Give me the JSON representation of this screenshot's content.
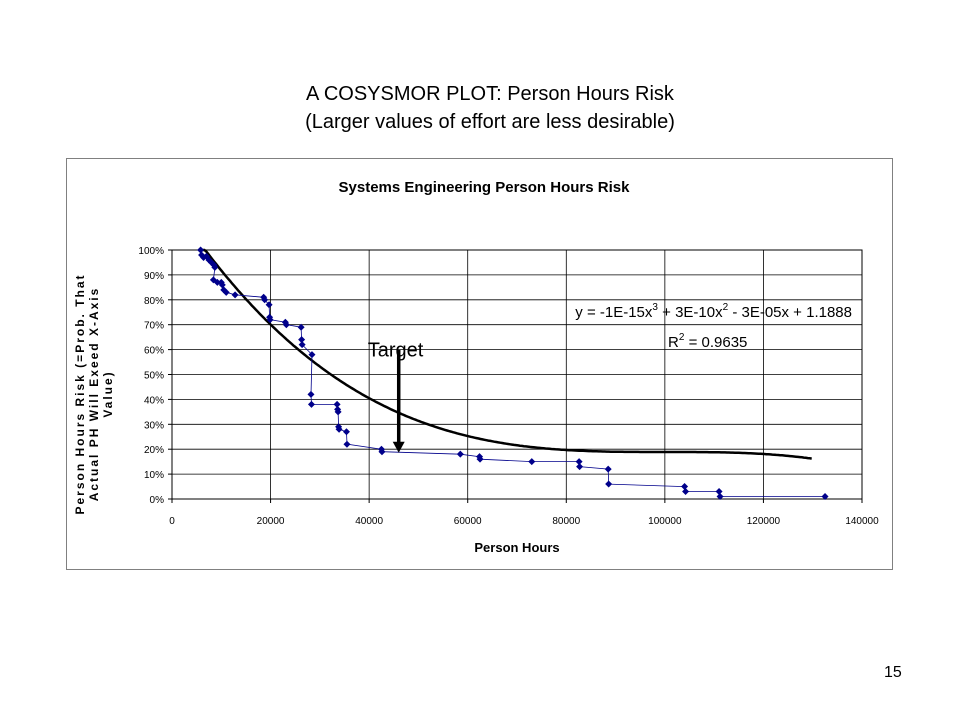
{
  "slide": {
    "title_line1": "A COSYSMOR  PLOT: Person Hours Risk",
    "title_line2": "(Larger values of effort are less desirable)",
    "page_number": "15"
  },
  "chart_data": {
    "type": "scatter",
    "title": "Systems Engineering Person Hours Risk",
    "xlabel": "Person Hours",
    "ylabel_lines": [
      "Person Hours Risk (=Prob. That",
      "Actual PH Will Exeed X-Axis",
      "Value)"
    ],
    "xlim": [
      0,
      140000
    ],
    "ylim": [
      0,
      1
    ],
    "x_ticks": [
      0,
      20000,
      40000,
      60000,
      80000,
      100000,
      120000,
      140000
    ],
    "x_tick_labels": [
      "0",
      "20000",
      "40000",
      "60000",
      "80000",
      "100000",
      "120000",
      "140000"
    ],
    "y_ticks": [
      0,
      0.1,
      0.2,
      0.3,
      0.4,
      0.5,
      0.6,
      0.7,
      0.8,
      0.9,
      1.0
    ],
    "y_tick_labels": [
      "0%",
      "10%",
      "20%",
      "30%",
      "40%",
      "50%",
      "60%",
      "70%",
      "80%",
      "90%",
      "100%"
    ],
    "grid": true,
    "series": [
      {
        "marker_color": "#00008B",
        "points": [
          [
            5800,
            1.0
          ],
          [
            6000,
            0.98
          ],
          [
            6400,
            0.97
          ],
          [
            7000,
            0.975
          ],
          [
            7500,
            0.96
          ],
          [
            8000,
            0.95
          ],
          [
            8500,
            0.94
          ],
          [
            8700,
            0.93
          ],
          [
            8400,
            0.88
          ],
          [
            9200,
            0.87
          ],
          [
            10000,
            0.87
          ],
          [
            10200,
            0.86
          ],
          [
            10500,
            0.84
          ],
          [
            11000,
            0.83
          ],
          [
            12800,
            0.82
          ],
          [
            18600,
            0.81
          ],
          [
            18800,
            0.8
          ],
          [
            19700,
            0.78
          ],
          [
            19800,
            0.73
          ],
          [
            19900,
            0.72
          ],
          [
            23000,
            0.71
          ],
          [
            23200,
            0.7
          ],
          [
            26200,
            0.69
          ],
          [
            26300,
            0.64
          ],
          [
            26400,
            0.62
          ],
          [
            28400,
            0.58
          ],
          [
            28200,
            0.42
          ],
          [
            28300,
            0.38
          ],
          [
            33500,
            0.38
          ],
          [
            33600,
            0.36
          ],
          [
            33700,
            0.35
          ],
          [
            33800,
            0.29
          ],
          [
            33900,
            0.28
          ],
          [
            35400,
            0.27
          ],
          [
            35500,
            0.22
          ],
          [
            42500,
            0.2
          ],
          [
            42600,
            0.19
          ],
          [
            58500,
            0.18
          ],
          [
            62400,
            0.17
          ],
          [
            62500,
            0.16
          ],
          [
            73000,
            0.15
          ],
          [
            82600,
            0.15
          ],
          [
            82700,
            0.13
          ],
          [
            88500,
            0.12
          ],
          [
            88600,
            0.06
          ],
          [
            104000,
            0.05
          ],
          [
            104200,
            0.03
          ],
          [
            111000,
            0.03
          ],
          [
            111200,
            0.01
          ],
          [
            132500,
            0.01
          ]
        ]
      }
    ],
    "trendline": {
      "color": "#000000",
      "coefficients": [
        -1e-15,
        3e-10,
        -3e-05,
        1.1888
      ]
    },
    "annotations": {
      "equation_prefix": "y = -1E-15x",
      "equation_exp1": "3",
      "equation_mid1": " + 3E-10x",
      "equation_exp2": "2",
      "equation_tail": " - 3E-05x + 1.1888",
      "r2_prefix": "R",
      "r2_exp": "2",
      "r2_tail": " = 0.9635",
      "target_label": "Target",
      "target_x": 46000,
      "target_y": 0.19
    }
  }
}
